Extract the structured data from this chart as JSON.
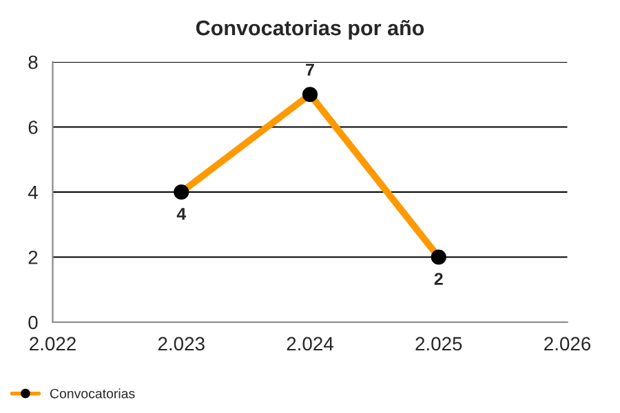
{
  "chart_data": {
    "type": "line",
    "title": "Convocatorias por año",
    "x": [
      2023,
      2024,
      2025
    ],
    "series": [
      {
        "name": "Convocatorias",
        "color": "#ff9900",
        "values": [
          4,
          7,
          2
        ]
      }
    ],
    "xlim": [
      2022,
      2026
    ],
    "xticks": [
      {
        "value": 2022,
        "label": "2.022"
      },
      {
        "value": 2023,
        "label": "2.023"
      },
      {
        "value": 2024,
        "label": "2.024"
      },
      {
        "value": 2025,
        "label": "2.025"
      },
      {
        "value": 2026,
        "label": "2.026"
      }
    ],
    "ylim": [
      0,
      8
    ],
    "yticks": [
      0,
      2,
      4,
      6,
      8
    ],
    "grid": "y",
    "legend": "bottom",
    "marker": "circle",
    "line_style": "solid",
    "data_labels": true
  }
}
